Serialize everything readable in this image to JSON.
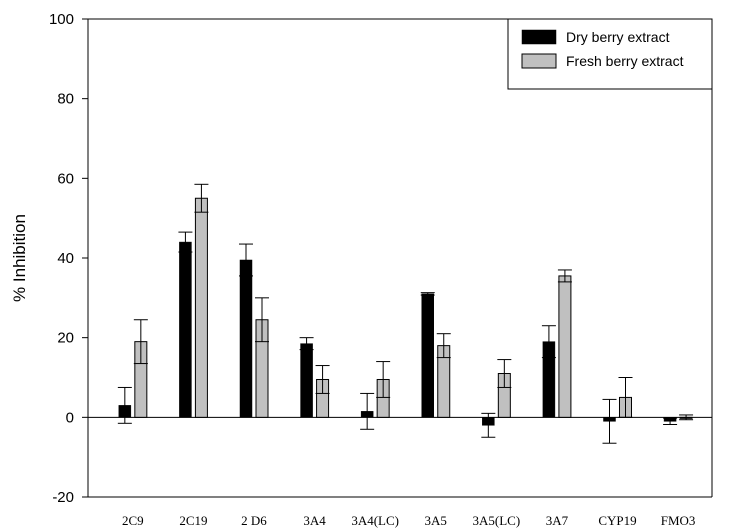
{
  "chart_data": {
    "type": "bar",
    "title": "",
    "xlabel": "",
    "ylabel": "% Inhibition",
    "ylim": [
      -20,
      100
    ],
    "yticks": [
      -20,
      0,
      20,
      40,
      60,
      80,
      100
    ],
    "grid": false,
    "legend_position": "top-right",
    "categories": [
      "2C9",
      "2C19",
      "2 D6",
      "3A4",
      "3A4(LC)",
      "3A5",
      "3A5(LC)",
      "3A7",
      "CYP19",
      "FMO3"
    ],
    "series": [
      {
        "name": "Dry berry extract",
        "color": "#000000",
        "values": [
          3,
          44,
          39.5,
          18.5,
          1.5,
          31,
          -2,
          19,
          -1,
          -1
        ],
        "errors": [
          4.5,
          2.5,
          4,
          1.5,
          4.5,
          0.3,
          3,
          4,
          5.5,
          0.8
        ]
      },
      {
        "name": "Fresh berry extract",
        "color": "#c0c0c0",
        "values": [
          19,
          55,
          24.5,
          9.5,
          9.5,
          18,
          11,
          35.5,
          5,
          0
        ],
        "errors": [
          5.5,
          3.5,
          5.5,
          3.5,
          4.5,
          3,
          3.5,
          1.5,
          5,
          0.6
        ]
      }
    ]
  }
}
